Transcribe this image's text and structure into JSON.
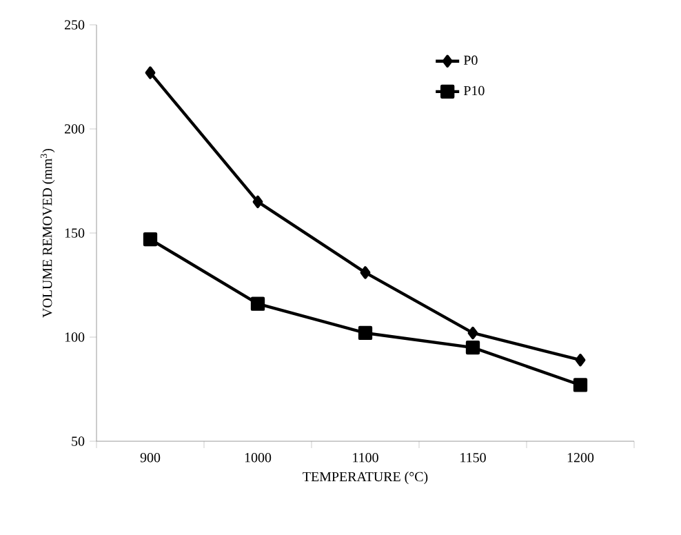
{
  "chart_data": {
    "type": "line",
    "xlabel": "TEMPERATURE (°C)",
    "ylabel": "VOLUME REMOVED (mm$^{3}$)",
    "categories": [
      "900",
      "1000",
      "1100",
      "1150",
      "1200"
    ],
    "series": [
      {
        "name": "P0",
        "color": "#000000",
        "marker": "diamond",
        "values": [
          227,
          165,
          131,
          102,
          89
        ]
      },
      {
        "name": "P10",
        "color": "#000000",
        "marker": "square",
        "values": [
          147,
          116,
          102,
          95,
          77
        ]
      }
    ],
    "ylim": [
      50,
      250
    ],
    "yticks": [
      50,
      100,
      150,
      200,
      250
    ],
    "grid": false,
    "legend": "top right",
    "line_style": "solid"
  }
}
